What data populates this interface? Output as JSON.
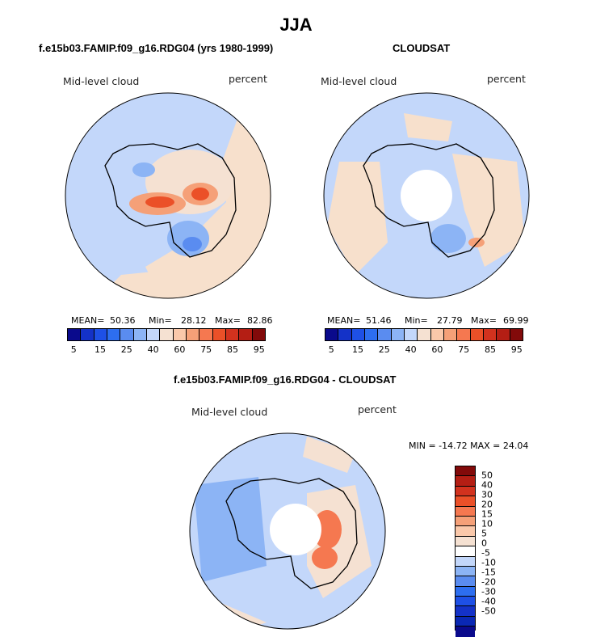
{
  "main_title": "JJA",
  "panels": [
    {
      "title": "f.e15b03.FAMIP.f09_g16.RDG04 (yrs 1980-1999)",
      "left_label": "Mid-level cloud",
      "right_label": "percent",
      "stats": {
        "mean_label": "MEAN=",
        "mean": "50.36",
        "min_label": "Min=",
        "min": "28.12",
        "max_label": "Max=",
        "max": "82.86"
      }
    },
    {
      "title": "CLOUDSAT",
      "left_label": "Mid-level cloud",
      "right_label": "percent",
      "stats": {
        "mean_label": "MEAN=",
        "mean": "51.46",
        "min_label": "Min=",
        "min": "27.79",
        "max_label": "Max=",
        "max": "69.99"
      }
    },
    {
      "title": "f.e15b03.FAMIP.f09_g16.RDG04 - CLOUDSAT",
      "left_label": "Mid-level cloud",
      "right_label": "percent",
      "minmax": "MIN = -14.72 MAX =  24.04"
    }
  ],
  "colorbar_abs": {
    "colors": [
      "#0a0a8c",
      "#1432c8",
      "#1e50e6",
      "#2d6ef0",
      "#5a8cf0",
      "#8cb4f5",
      "#c3d7fa",
      "#f5e1d2",
      "#fac8aa",
      "#f5a078",
      "#f57850",
      "#eb5028",
      "#d2321e",
      "#b41e14",
      "#820a0a"
    ],
    "ticks": [
      "5",
      "15",
      "25",
      "40",
      "60",
      "75",
      "85",
      "95"
    ]
  },
  "colorbar_diff": {
    "colors": [
      "#820a0a",
      "#b41e14",
      "#d2321e",
      "#eb5028",
      "#f57850",
      "#f5a078",
      "#fac8aa",
      "#f5e1d2",
      "#ffffff",
      "#c3d7fa",
      "#8cb4f5",
      "#5a8cf0",
      "#2d6ef0",
      "#1e50e6",
      "#1432c8",
      "#0a28b4",
      "#0a0a8c"
    ],
    "ticks": [
      "50",
      "40",
      "30",
      "20",
      "15",
      "10",
      "5",
      "0",
      "-5",
      "-10",
      "-15",
      "-20",
      "-30",
      "-40",
      "-50"
    ]
  },
  "maps": {
    "panel1_color": "#c3d7fa",
    "panel2_color": "#c3d7fa",
    "panel3_color": "#c3d7fa",
    "land_outline": "#000000"
  }
}
